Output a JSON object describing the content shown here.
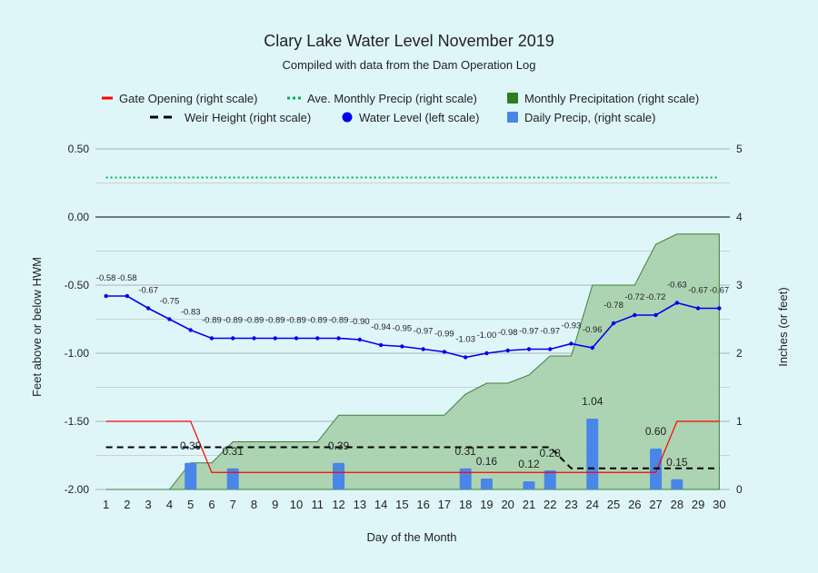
{
  "chart_data": {
    "type": "combo",
    "title": "Clary Lake Water Level November 2019",
    "subtitle": "Compiled with data from the Dam Operation Log",
    "xlabel": "Day of the Month",
    "ylabel_left": "Feet above or below HWM",
    "ylabel_right": "Inches (or feet)",
    "left_ylim": [
      -2.0,
      0.5
    ],
    "right_ylim": [
      0,
      5
    ],
    "left_ticks": [
      "0.50",
      "0.00",
      "-0.50",
      "-1.00",
      "-1.50",
      "-2.00"
    ],
    "left_tick_values": [
      0.5,
      0.0,
      -0.5,
      -1.0,
      -1.5,
      -2.0
    ],
    "right_ticks": [
      "5",
      "4",
      "3",
      "2",
      "1",
      "0"
    ],
    "right_tick_values": [
      5,
      4,
      3,
      2,
      1,
      0
    ],
    "grid": true,
    "legend_position": "top",
    "x": [
      1,
      2,
      3,
      4,
      5,
      6,
      7,
      8,
      9,
      10,
      11,
      12,
      13,
      14,
      15,
      16,
      17,
      18,
      19,
      20,
      21,
      22,
      23,
      24,
      25,
      26,
      27,
      28,
      29,
      30
    ],
    "series": [
      {
        "name": "Gate Opening (right scale)",
        "kind": "step-line",
        "color": "#ff0000",
        "values": [
          1,
          1,
          1,
          1,
          1,
          0.25,
          0.25,
          0.25,
          0.25,
          0.25,
          0.25,
          0.25,
          0.25,
          0.25,
          0.25,
          0.25,
          0.25,
          0.25,
          0.25,
          0.25,
          0.25,
          0.25,
          0.25,
          0.25,
          0.25,
          0.25,
          0.25,
          1,
          1,
          1
        ]
      },
      {
        "name": "Ave. Monthly Precip (right scale)",
        "kind": "dotted-line",
        "color": "#00b050",
        "values": [
          4.58,
          4.58,
          4.58,
          4.58,
          4.58,
          4.58,
          4.58,
          4.58,
          4.58,
          4.58,
          4.58,
          4.58,
          4.58,
          4.58,
          4.58,
          4.58,
          4.58,
          4.58,
          4.58,
          4.58,
          4.58,
          4.58,
          4.58,
          4.58,
          4.58,
          4.58,
          4.58,
          4.58,
          4.58,
          4.58
        ]
      },
      {
        "name": "Monthly Precipitation (right scale)",
        "kind": "area",
        "color": "#2e7d1f",
        "values": [
          0,
          0,
          0,
          0,
          0.39,
          0.39,
          0.7,
          0.7,
          0.7,
          0.7,
          0.7,
          1.09,
          1.09,
          1.09,
          1.09,
          1.09,
          1.09,
          1.4,
          1.56,
          1.56,
          1.68,
          1.96,
          1.96,
          3.0,
          3.0,
          3.0,
          3.6,
          3.75,
          3.75,
          3.75
        ]
      },
      {
        "name": "Weir Height (right scale)",
        "kind": "dashed-line",
        "color": "#000000",
        "values": [
          0.62,
          0.62,
          0.62,
          0.62,
          0.62,
          0.62,
          0.62,
          0.62,
          0.62,
          0.62,
          0.62,
          0.62,
          0.62,
          0.62,
          0.62,
          0.62,
          0.62,
          0.62,
          0.62,
          0.62,
          0.62,
          0.62,
          0.31,
          0.31,
          0.31,
          0.31,
          0.31,
          0.31,
          0.31,
          0.31
        ]
      },
      {
        "name": "Water Level (left scale)",
        "kind": "line-markers",
        "color": "#0000ee",
        "values": [
          -0.58,
          -0.58,
          -0.67,
          -0.75,
          -0.83,
          -0.89,
          -0.89,
          -0.89,
          -0.89,
          -0.89,
          -0.89,
          -0.89,
          -0.9,
          -0.94,
          -0.95,
          -0.97,
          -0.99,
          -1.03,
          -1.0,
          -0.98,
          -0.97,
          -0.97,
          -0.93,
          -0.96,
          -0.78,
          -0.72,
          -0.72,
          -0.63,
          -0.67,
          -0.67
        ],
        "labels": [
          "-0.58",
          "-0.58",
          "-0.67",
          "-0.75",
          "-0.83",
          "-0.89",
          "-0.89",
          "-0.89",
          "-0.89",
          "-0.89",
          "-0.89",
          "-0.89",
          "-0.90",
          "-0.94",
          "-0.95",
          "-0.97",
          "-0.99",
          "-1.03",
          "-1.00",
          "-0.98",
          "-0.97",
          "-0.97",
          "-0.93",
          "-0.96",
          "-0.78",
          "-0.72",
          "-0.72",
          "-0.63",
          "-0.67",
          "-0.67"
        ]
      },
      {
        "name": "Daily Precip, (right scale)",
        "kind": "bar",
        "color": "#4a86e8",
        "values": [
          0,
          0,
          0,
          0,
          0.39,
          0,
          0.31,
          0,
          0,
          0,
          0,
          0.39,
          0,
          0,
          0,
          0,
          0,
          0.31,
          0.16,
          0,
          0.12,
          0.28,
          0,
          1.04,
          0,
          0,
          0.6,
          0.15,
          0,
          0
        ],
        "labels": [
          "",
          "",
          "",
          "",
          "0.39",
          "",
          "0.31",
          "",
          "",
          "",
          "",
          "0.39",
          "",
          "",
          "",
          "",
          "",
          "0.31",
          "0.16",
          "",
          "0.12",
          "0.28",
          "",
          "1.04",
          "",
          "",
          "0.60",
          "0.15",
          "",
          ""
        ]
      }
    ]
  }
}
